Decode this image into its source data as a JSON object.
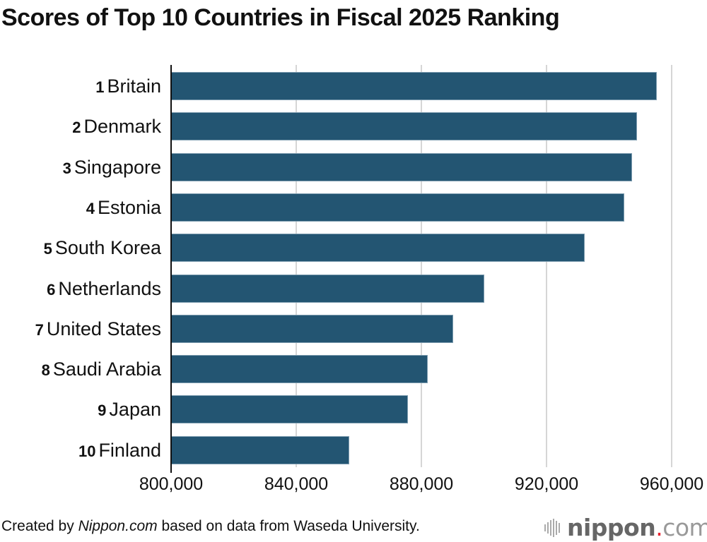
{
  "title": "Scores of Top 10 Countries in Fiscal 2025 Ranking",
  "footer": {
    "prefix": "Created by ",
    "source_italic": "Nippon.com",
    "suffix": " based on data from Waseda University."
  },
  "logo": {
    "name": "nippon",
    "dot": ".",
    "tld": "com",
    "accent_color": "#e8232f"
  },
  "colors": {
    "bar": "#235572",
    "grid": "#d6d6d6",
    "axis": "#111111"
  },
  "chart_data": {
    "type": "bar",
    "orientation": "horizontal",
    "title": "Scores of Top 10 Countries in Fiscal 2025 Ranking",
    "xlabel": "",
    "ylabel": "",
    "xlim": [
      800000,
      960000
    ],
    "ticks": [
      "800,000",
      "840,000",
      "880,000",
      "920,000",
      "960,000"
    ],
    "tick_values": [
      800000,
      840000,
      880000,
      920000,
      960000
    ],
    "grid": true,
    "legend": null,
    "categories": [
      "1 Britain",
      "2 Denmark",
      "3 Singapore",
      "4 Estonia",
      "5 South Korea",
      "6 Netherlands",
      "7 United States",
      "8 Saudi Arabia",
      "9 Japan",
      "10 Finland"
    ],
    "ranks": [
      "1",
      "2",
      "3",
      "4",
      "5",
      "6",
      "7",
      "8",
      "9",
      "10"
    ],
    "countries": [
      "Britain",
      "Denmark",
      "Singapore",
      "Estonia",
      "South Korea",
      "Netherlands",
      "United States",
      "Saudi Arabia",
      "Japan",
      "Finland"
    ],
    "values": [
      955200,
      949000,
      947300,
      944900,
      932200,
      900100,
      890200,
      882000,
      875700,
      857000
    ],
    "source": "Created by Nippon.com based on data from Waseda University."
  }
}
